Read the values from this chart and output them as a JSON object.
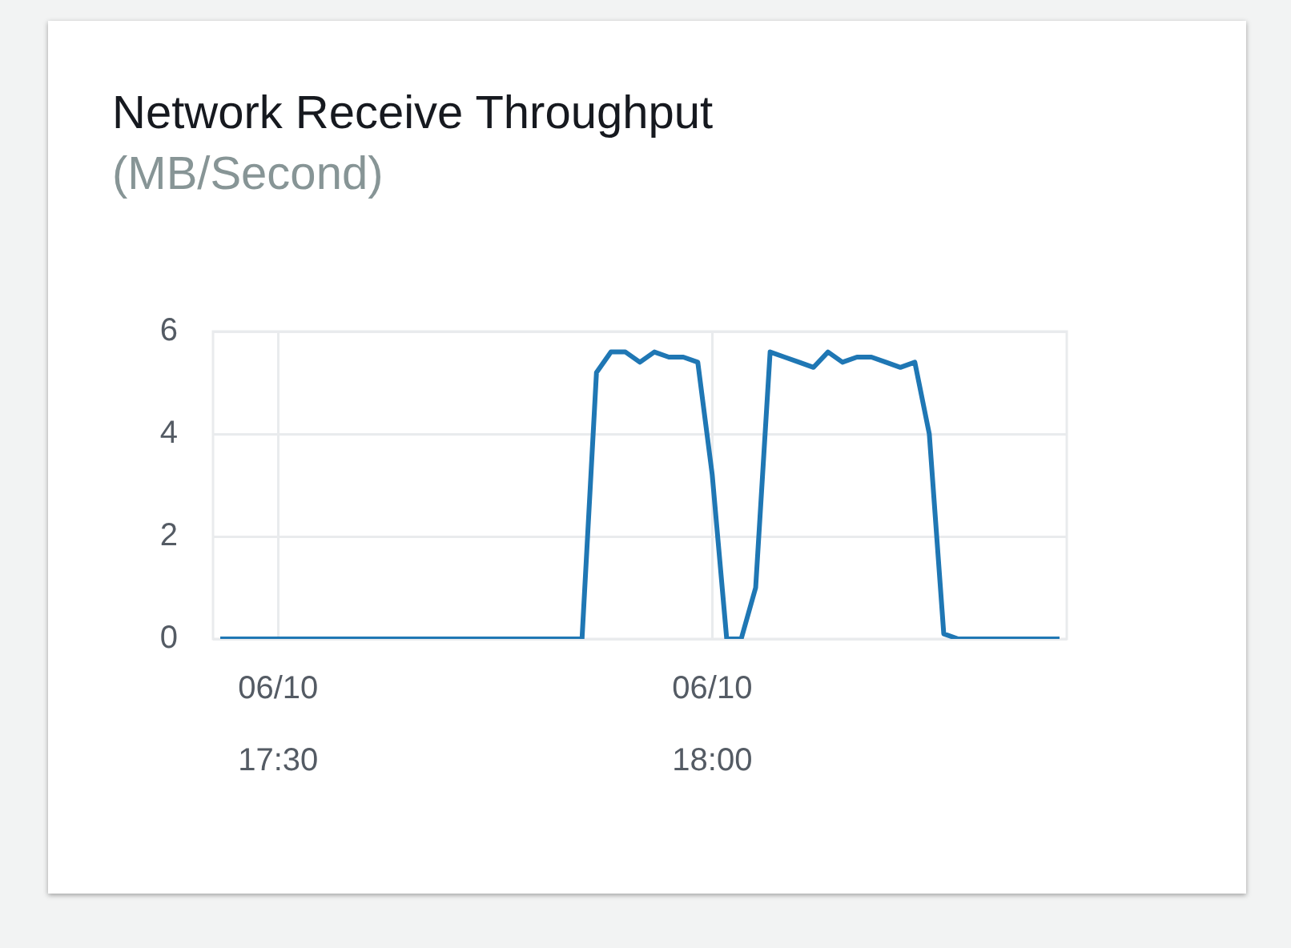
{
  "chart_data": {
    "type": "line",
    "title": "Network Receive Throughput",
    "subtitle": "(MB/Second)",
    "categories": [
      null,
      null,
      null,
      null,
      "06/10 17:30",
      null,
      null,
      null,
      null,
      null,
      null,
      null,
      null,
      null,
      null,
      null,
      null,
      null,
      null,
      null,
      null,
      null,
      null,
      null,
      null,
      null,
      null,
      null,
      null,
      null,
      null,
      null,
      null,
      null,
      "06/10 18:00",
      null,
      null,
      null,
      null,
      null,
      null,
      null,
      null,
      null,
      null,
      null,
      null,
      null,
      null,
      null,
      null,
      null,
      null,
      null,
      null,
      null,
      null,
      null,
      null
    ],
    "series": [
      {
        "color": "#1f77b4",
        "values": [
          0,
          0,
          0,
          0,
          0,
          0,
          0,
          0,
          0,
          0,
          0,
          0,
          0,
          0,
          0,
          0,
          0,
          0,
          0,
          0,
          0,
          0,
          0,
          0,
          0,
          0,
          5.2,
          5.6,
          5.6,
          5.4,
          5.6,
          5.5,
          5.5,
          5.4,
          3.2,
          0,
          0,
          1,
          5.6,
          5.5,
          5.4,
          5.3,
          5.6,
          5.4,
          5.5,
          5.5,
          5.4,
          5.3,
          5.4,
          4,
          0.1,
          0,
          0,
          0,
          0,
          0,
          0,
          0,
          0
        ]
      }
    ],
    "ylim": [
      0,
      6
    ],
    "yticks": [
      0,
      2,
      4,
      6
    ],
    "grid": true,
    "legend": false,
    "marker": "none",
    "line_style": "solid"
  }
}
